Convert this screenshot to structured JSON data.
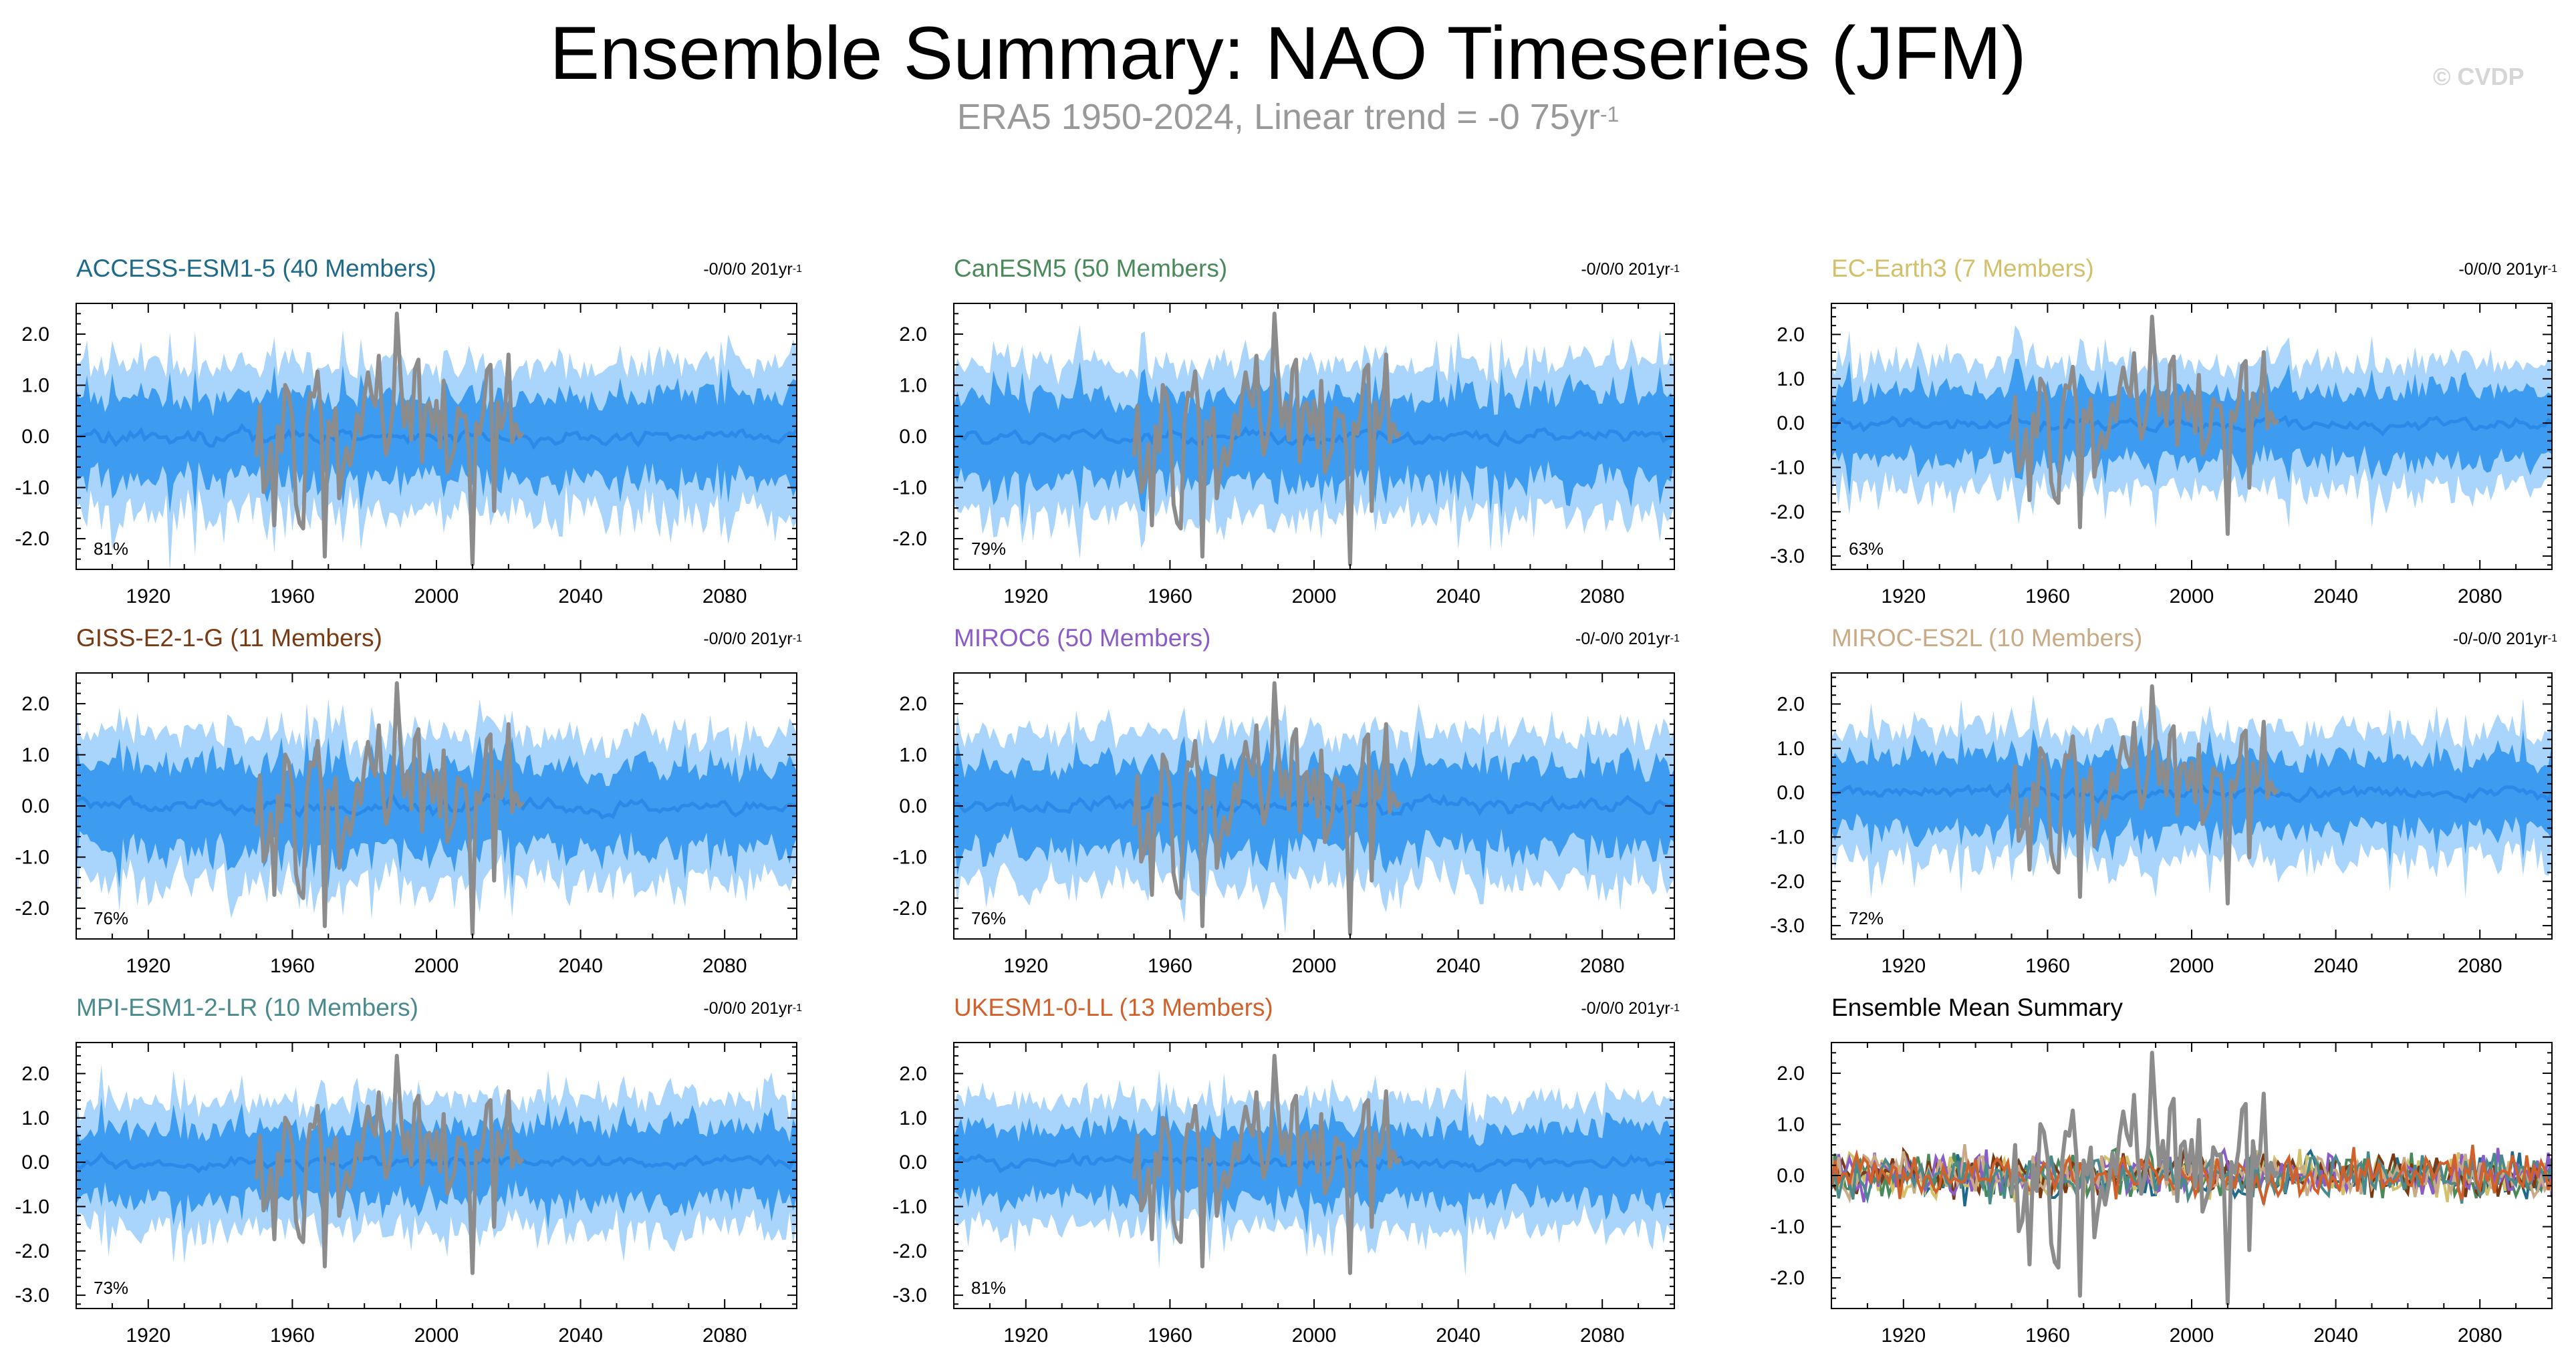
{
  "header": {
    "title": "Ensemble Summary: NAO Timeseries (JFM)",
    "subtitle": "ERA5 1950-2024, Linear trend = -0 75yr",
    "subtitle_sup": "-1",
    "watermark": "© CVDP"
  },
  "colors": {
    "outer_band": "#a9d4fb",
    "inner_band": "#3d9bf0",
    "ensemble_mean": "#2b8ae8",
    "observed": "#8c8c8c"
  },
  "chart_data": [
    {
      "type": "area",
      "title": "ACCESS-ESM1-5 (40 Members)",
      "title_color": "#1f6a8a",
      "trend": "-0/0/0 201yr",
      "trend_sup": "-1",
      "percent": "81%",
      "x_ticks": [
        "1920",
        "1960",
        "2000",
        "2040",
        "2080"
      ],
      "y_ticks": [
        "2.0",
        "1.0",
        "0.0",
        "-1.0",
        "-2.0"
      ],
      "ylim": [
        -2.6,
        2.6
      ],
      "xlim": [
        1900,
        2100
      ],
      "obs_period": [
        1950,
        2024
      ]
    },
    {
      "type": "area",
      "title": "CanESM5 (50 Members)",
      "title_color": "#4a8a5a",
      "trend": "-0/0/0 201yr",
      "trend_sup": "-1",
      "percent": "79%",
      "x_ticks": [
        "1920",
        "1960",
        "2000",
        "2040",
        "2080"
      ],
      "y_ticks": [
        "2.0",
        "1.0",
        "0.0",
        "-1.0",
        "-2.0"
      ],
      "ylim": [
        -2.6,
        2.6
      ],
      "xlim": [
        1900,
        2100
      ],
      "obs_period": [
        1950,
        2024
      ]
    },
    {
      "type": "area",
      "title": "EC-Earth3 (7 Members)",
      "title_color": "#d2c06a",
      "trend": "-0/0/0 201yr",
      "trend_sup": "-1",
      "percent": "63%",
      "x_ticks": [
        "1920",
        "1960",
        "2000",
        "2040",
        "2080"
      ],
      "y_ticks": [
        "2.0",
        "1.0",
        "0.0",
        "-1.0",
        "-2.0",
        "-3.0"
      ],
      "ylim": [
        -3.3,
        2.7
      ],
      "xlim": [
        1900,
        2100
      ],
      "obs_period": [
        1950,
        2024
      ]
    },
    {
      "type": "area",
      "title": "GISS-E2-1-G (11 Members)",
      "title_color": "#7a3a14",
      "trend": "-0/0/0 201yr",
      "trend_sup": "-1",
      "percent": "76%",
      "x_ticks": [
        "1920",
        "1960",
        "2000",
        "2040",
        "2080"
      ],
      "y_ticks": [
        "2.0",
        "1.0",
        "0.0",
        "-1.0",
        "-2.0"
      ],
      "ylim": [
        -2.6,
        2.6
      ],
      "xlim": [
        1900,
        2100
      ],
      "obs_period": [
        1950,
        2024
      ]
    },
    {
      "type": "area",
      "title": "MIROC6 (50 Members)",
      "title_color": "#8b5cc7",
      "trend": "-0/-0/0 201yr",
      "trend_sup": "-1",
      "percent": "76%",
      "x_ticks": [
        "1920",
        "1960",
        "2000",
        "2040",
        "2080"
      ],
      "y_ticks": [
        "2.0",
        "1.0",
        "0.0",
        "-1.0",
        "-2.0"
      ],
      "ylim": [
        -2.6,
        2.6
      ],
      "xlim": [
        1900,
        2100
      ],
      "obs_period": [
        1950,
        2024
      ]
    },
    {
      "type": "area",
      "title": "MIROC-ES2L (10 Members)",
      "title_color": "#c9aa86",
      "trend": "-0/-0/0 201yr",
      "trend_sup": "-1",
      "percent": "72%",
      "x_ticks": [
        "1920",
        "1960",
        "2000",
        "2040",
        "2080"
      ],
      "y_ticks": [
        "2.0",
        "1.0",
        "0.0",
        "-1.0",
        "-2.0",
        "-3.0"
      ],
      "ylim": [
        -3.3,
        2.7
      ],
      "xlim": [
        1900,
        2100
      ],
      "obs_period": [
        1950,
        2024
      ]
    },
    {
      "type": "area",
      "title": "MPI-ESM1-2-LR (10 Members)",
      "title_color": "#4a8a8c",
      "trend": "-0/0/0 201yr",
      "trend_sup": "-1",
      "percent": "73%",
      "x_ticks": [
        "1920",
        "1960",
        "2000",
        "2040",
        "2080"
      ],
      "y_ticks": [
        "2.0",
        "1.0",
        "0.0",
        "-1.0",
        "-2.0",
        "-3.0"
      ],
      "ylim": [
        -3.3,
        2.7
      ],
      "xlim": [
        1900,
        2100
      ],
      "obs_period": [
        1950,
        2024
      ]
    },
    {
      "type": "area",
      "title": "UKESM1-0-LL (13 Members)",
      "title_color": "#d2602a",
      "trend": "-0/0/0 201yr",
      "trend_sup": "-1",
      "percent": "81%",
      "x_ticks": [
        "1920",
        "1960",
        "2000",
        "2040",
        "2080"
      ],
      "y_ticks": [
        "2.0",
        "1.0",
        "0.0",
        "-1.0",
        "-2.0",
        "-3.0"
      ],
      "ylim": [
        -3.3,
        2.7
      ],
      "xlim": [
        1900,
        2100
      ],
      "obs_period": [
        1950,
        2024
      ]
    },
    {
      "type": "line",
      "title": "Ensemble Mean Summary",
      "title_color": "#000000",
      "trend": "",
      "trend_sup": "",
      "percent": "",
      "x_ticks": [
        "1920",
        "1960",
        "2000",
        "2040",
        "2080"
      ],
      "y_ticks": [
        "2.0",
        "1.0",
        "0.0",
        "-1.0",
        "-2.0"
      ],
      "ylim": [
        -2.6,
        2.6
      ],
      "xlim": [
        1900,
        2100
      ],
      "obs_period": [
        1950,
        2024
      ],
      "series_colors": [
        "#1f6a8a",
        "#4a8a5a",
        "#d2c06a",
        "#7a3a14",
        "#8b5cc7",
        "#c9aa86",
        "#4a8a8c",
        "#d2602a"
      ]
    }
  ]
}
